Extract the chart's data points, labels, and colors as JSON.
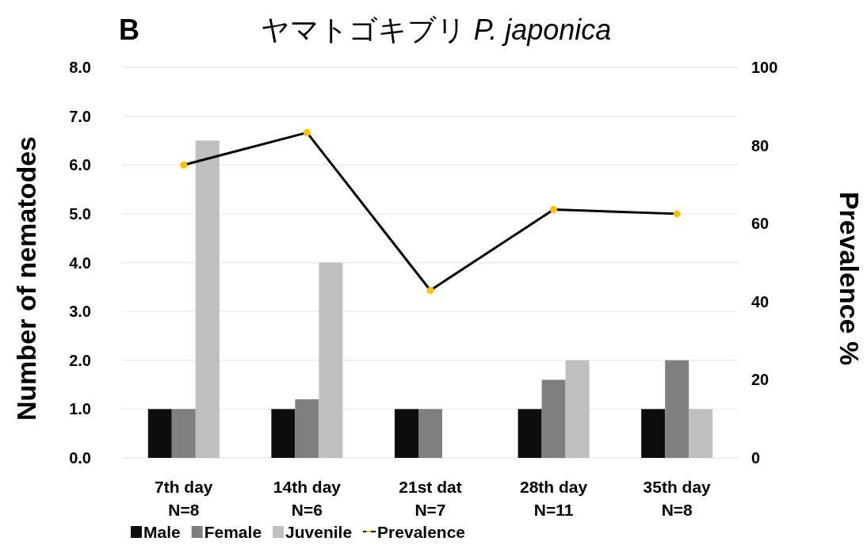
{
  "chart_data": {
    "type": "bar",
    "title": "ヤマトゴキブリ *P. japonica*",
    "annotations": [
      "B"
    ],
    "ylabel": "Number of nematodes",
    "y2label": "Prevalence %",
    "categories": [
      "7th day\nN=8",
      "14th day\nN=6",
      "21st dat\nN=7",
      "28th day\nN=11",
      "35th day\nN=8"
    ],
    "series": [
      {
        "name": "Male",
        "color": "#0d0d0d",
        "values": [
          1,
          1,
          1,
          1,
          1
        ]
      },
      {
        "name": "Female",
        "color": "#7f7f7f",
        "values": [
          1,
          1.2,
          1,
          1.6,
          2
        ]
      },
      {
        "name": "Juvenile",
        "color": "#bfbfbf",
        "values": [
          6.5,
          4,
          null,
          2,
          1
        ]
      },
      {
        "name": "Prevalence",
        "type": "line",
        "axis": "y2",
        "color": "#000000",
        "marker": "circle",
        "values": [
          75,
          83.3,
          42.9,
          63.6,
          62.5
        ]
      }
    ],
    "ylim": [
      0,
      8
    ],
    "yticks": [
      {
        "value": 0,
        "label": "0.0"
      },
      {
        "value": 1,
        "label": "1.0"
      },
      {
        "value": 2,
        "label": "2.0"
      },
      {
        "value": 3,
        "label": "3.0"
      },
      {
        "value": 4,
        "label": "4.0"
      },
      {
        "value": 5,
        "label": "5.0"
      },
      {
        "value": 6,
        "label": "6.0"
      },
      {
        "value": 7,
        "label": "7.0"
      },
      {
        "value": 8,
        "label": "8.0"
      }
    ],
    "y2lim": [
      0,
      100
    ],
    "y2ticks": [
      0,
      20,
      40,
      60,
      80,
      100
    ],
    "grid": "y",
    "legend": "bottom"
  }
}
